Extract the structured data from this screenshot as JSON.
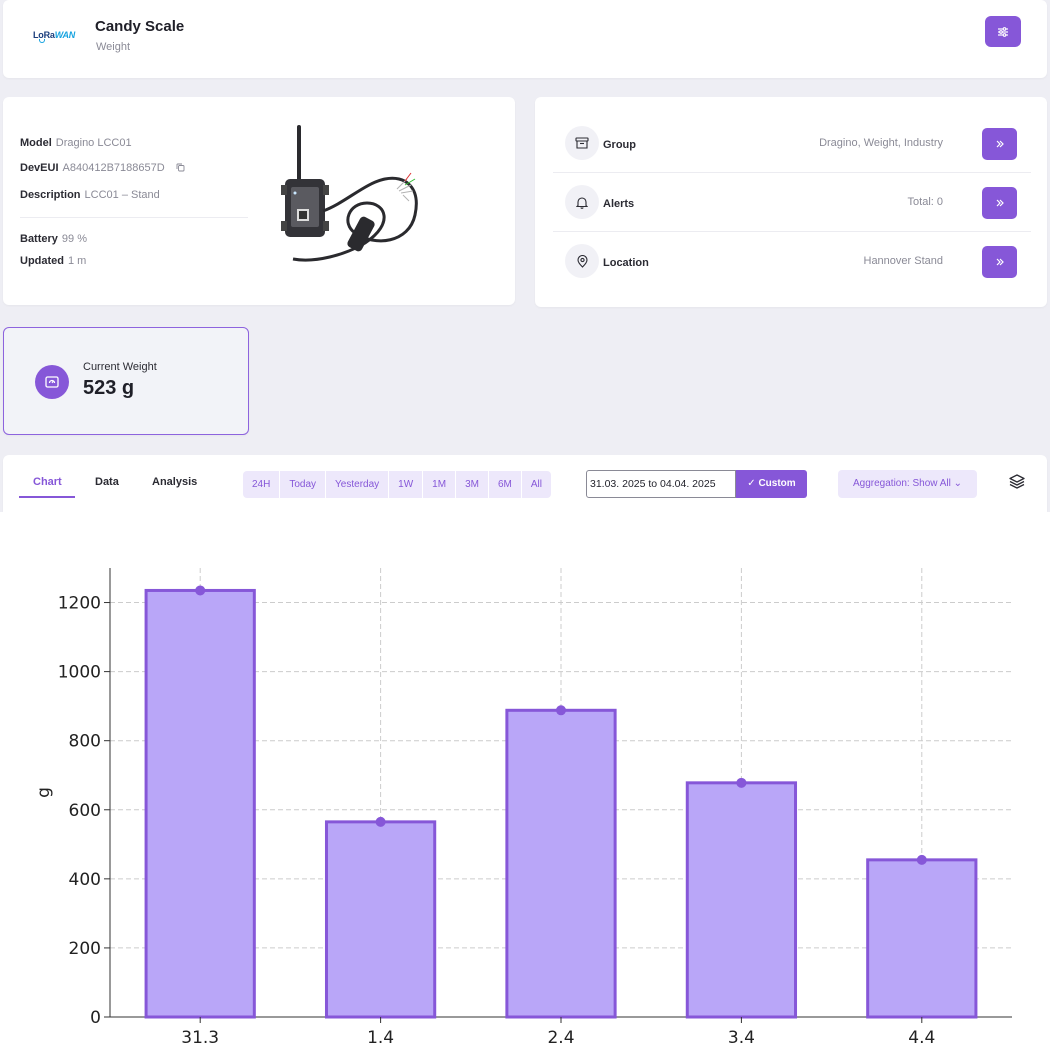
{
  "header": {
    "logo_text": "LoRa",
    "logo_text_accent": "WAN",
    "title": "Candy Scale",
    "subtitle": "Weight"
  },
  "device": {
    "model_label": "Model",
    "model_value": "Dragino LCC01",
    "deveui_label": "DevEUI",
    "deveui_value": "A840412B7188657D",
    "description_label": "Description",
    "description_value": "LCC01 – Stand",
    "battery_label": "Battery",
    "battery_value": "99 %",
    "updated_label": "Updated",
    "updated_value": "1 m"
  },
  "links": [
    {
      "label": "Group",
      "value": "Dragino, Weight, Industry",
      "icon": "archive-icon"
    },
    {
      "label": "Alerts",
      "value": "Total: 0",
      "icon": "bell-icon"
    },
    {
      "label": "Location",
      "value": "Hannover Stand",
      "icon": "map-pin-icon"
    }
  ],
  "current": {
    "label": "Current Weight",
    "value": "523 g"
  },
  "tabs": [
    "Chart",
    "Data",
    "Analysis"
  ],
  "active_tab": "Chart",
  "ranges": [
    "24H",
    "Today",
    "Yesterday",
    "1W",
    "1M",
    "3M",
    "6M",
    "All"
  ],
  "date_range": "31.03. 2025 to 04.04. 2025",
  "custom_label": "✓ Custom",
  "aggregation_label": "Aggregation: Show All ⌄",
  "colors": {
    "accent": "#8657d8",
    "bar_fill": "#b9a6f8",
    "bar_stroke": "#8657d8"
  },
  "chart_data": {
    "type": "bar",
    "categories": [
      "31.3",
      "1.4",
      "2.4",
      "3.4",
      "4.4"
    ],
    "values": [
      1235,
      565,
      888,
      678,
      455
    ],
    "ylabel": "g",
    "ylim": [
      0,
      1300
    ],
    "yticks": [
      0,
      200,
      400,
      600,
      800,
      1000,
      1200
    ],
    "grid": true
  }
}
